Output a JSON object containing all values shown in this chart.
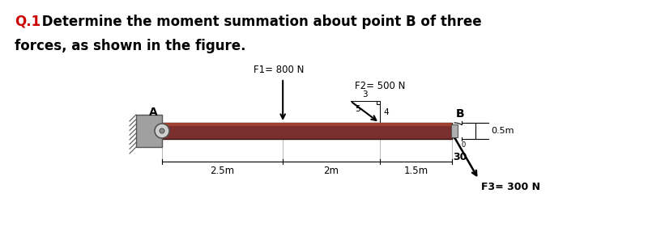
{
  "title_q": "Q.1",
  "title_rest": " Determine the moment summation about point B of three",
  "title_line2": "forces, as shown in the figure.",
  "title_color": "#cc0000",
  "text_color": "#000000",
  "F1_label": "F1= 800 N",
  "F2_label": "F2= 500 N",
  "F3_label": "F3= 300 N",
  "bg_color": "#ffffff",
  "beam_color": "#7B2E2E",
  "beam_top_color": "#A04030",
  "wall_color": "#a0a0a0",
  "dist_labels": [
    "2.5m",
    "2m",
    "1.5m"
  ],
  "angle_label": "30",
  "d05m_label": "0.5m",
  "fig_width": 8.0,
  "fig_height": 2.81,
  "dpi": 100
}
